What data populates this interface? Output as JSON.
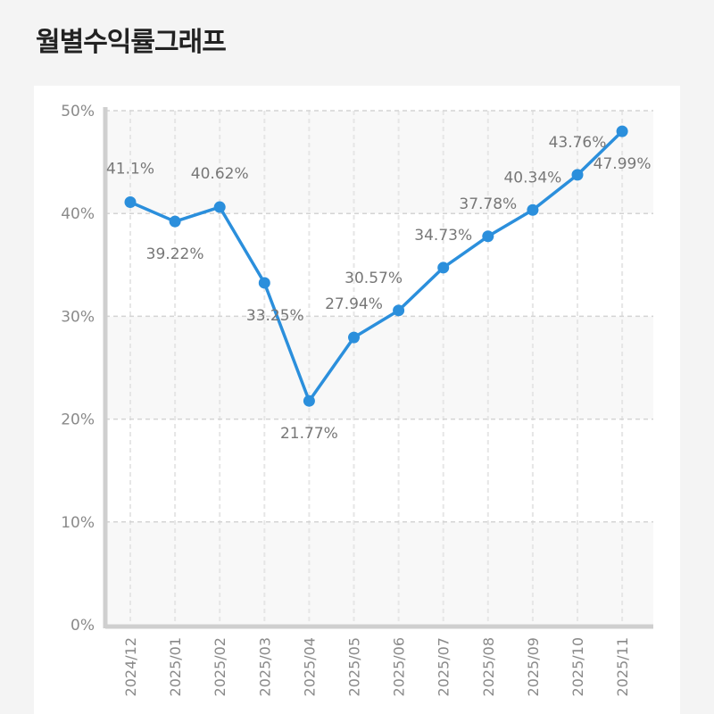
{
  "title": "월별수익률그래프",
  "chart_data": {
    "type": "line",
    "title": "",
    "xlabel": "",
    "ylabel": "",
    "categories": [
      "2024/12",
      "2025/01",
      "2025/02",
      "2025/03",
      "2025/04",
      "2025/05",
      "2025/06",
      "2025/07",
      "2025/08",
      "2025/09",
      "2025/10",
      "2025/11"
    ],
    "series": [
      {
        "values": [
          41.1,
          39.22,
          40.62,
          33.25,
          21.77,
          27.94,
          30.57,
          34.73,
          37.78,
          40.34,
          43.76,
          47.99
        ],
        "labels": [
          "41.1%",
          "39.22%",
          "40.62%",
          "33.25%",
          "21.77%",
          "27.94%",
          "30.57%",
          "34.73%",
          "37.78%",
          "40.34%",
          "43.76%",
          "47.99%"
        ]
      }
    ],
    "ylim": [
      0,
      50
    ],
    "yticks": [
      0,
      10,
      20,
      30,
      40,
      50
    ],
    "ytick_labels": [
      "0%",
      "10%",
      "20%",
      "30%",
      "40%",
      "50%"
    ],
    "grid": true,
    "line_color": "#2b8fdc",
    "label_color": "#777777"
  }
}
